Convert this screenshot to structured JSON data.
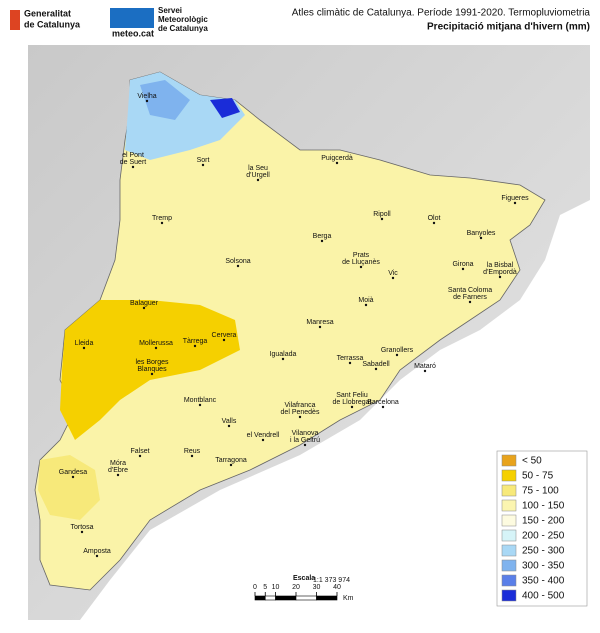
{
  "header": {
    "org_lines": [
      "Generalitat",
      "de Catalunya"
    ],
    "service_lines": [
      "Servei",
      "Meteorològic",
      "de Catalunya"
    ],
    "site": "meteo.cat",
    "title": "Atles climàtic de Catalunya. Període 1991-2020. Termopluviometria",
    "subtitle": "Precipitació mitjana d'hivern (mm)"
  },
  "towns": [
    {
      "lines": [
        "Vielha"
      ]
    },
    {
      "lines": [
        "el Pont",
        "de Suert"
      ]
    },
    {
      "lines": [
        "Sort"
      ]
    },
    {
      "lines": [
        "la Seu",
        "d'Urgell"
      ]
    },
    {
      "lines": [
        "Puigcerdà"
      ]
    },
    {
      "lines": [
        "Figueres"
      ]
    },
    {
      "lines": [
        "Tremp"
      ]
    },
    {
      "lines": [
        "Ripoll"
      ]
    },
    {
      "lines": [
        "Olot"
      ]
    },
    {
      "lines": [
        "Berga"
      ]
    },
    {
      "lines": [
        "Banyoles"
      ]
    },
    {
      "lines": [
        "Prats",
        "de Lluçanès"
      ]
    },
    {
      "lines": [
        "Solsona"
      ]
    },
    {
      "lines": [
        "Girona"
      ]
    },
    {
      "lines": [
        "la Bisbal",
        "d'Empordà"
      ]
    },
    {
      "lines": [
        "Vic"
      ]
    },
    {
      "lines": [
        "Santa Coloma",
        "de Farners"
      ]
    },
    {
      "lines": [
        "Balaguer"
      ]
    },
    {
      "lines": [
        "Moià"
      ]
    },
    {
      "lines": [
        "Cervera"
      ]
    },
    {
      "lines": [
        "Manresa"
      ]
    },
    {
      "lines": [
        "Lleida"
      ]
    },
    {
      "lines": [
        "Mollerussa"
      ]
    },
    {
      "lines": [
        "Tàrrega"
      ]
    },
    {
      "lines": [
        "Granollers"
      ]
    },
    {
      "lines": [
        "les Borges",
        "Blanques"
      ]
    },
    {
      "lines": [
        "Igualada"
      ]
    },
    {
      "lines": [
        "Terrassa"
      ]
    },
    {
      "lines": [
        "Sabadell"
      ]
    },
    {
      "lines": [
        "Mataró"
      ]
    },
    {
      "lines": [
        "Sant Feliu",
        "de Llobregat"
      ]
    },
    {
      "lines": [
        "Barcelona"
      ]
    },
    {
      "lines": [
        "Montblanc"
      ]
    },
    {
      "lines": [
        "Vilafranca",
        "del Penedès"
      ]
    },
    {
      "lines": [
        "Valls"
      ]
    },
    {
      "lines": [
        "el Vendrell"
      ]
    },
    {
      "lines": [
        "Vilanova",
        "i la Geltrú"
      ]
    },
    {
      "lines": [
        "Falset"
      ]
    },
    {
      "lines": [
        "Reus"
      ]
    },
    {
      "lines": [
        "Tarragona"
      ]
    },
    {
      "lines": [
        "Móra",
        "d'Ebre"
      ]
    },
    {
      "lines": [
        "Gandesa"
      ]
    },
    {
      "lines": [
        "Tortosa"
      ]
    },
    {
      "lines": [
        "Amposta"
      ]
    }
  ],
  "legend": [
    {
      "label": "< 50",
      "color": "#e8a31c"
    },
    {
      "label": "50 - 75",
      "color": "#f5d000"
    },
    {
      "label": "75 - 100",
      "color": "#f7e97a"
    },
    {
      "label": "100 - 150",
      "color": "#fbf5b0"
    },
    {
      "label": "150 - 200",
      "color": "#fdfbe0"
    },
    {
      "label": "200 - 250",
      "color": "#d6f4f8"
    },
    {
      "label": "250 - 300",
      "color": "#a9d8f5"
    },
    {
      "label": "300 - 350",
      "color": "#7fb3ee"
    },
    {
      "label": "350 - 400",
      "color": "#5a7fe8"
    },
    {
      "label": "400 - 500",
      "color": "#1a2cd8"
    }
  ],
  "scale": {
    "title": "Escala",
    "ratio": "1:1 373 974",
    "ticks": [
      0,
      5,
      10,
      20,
      30,
      40
    ],
    "unit": "Km"
  }
}
